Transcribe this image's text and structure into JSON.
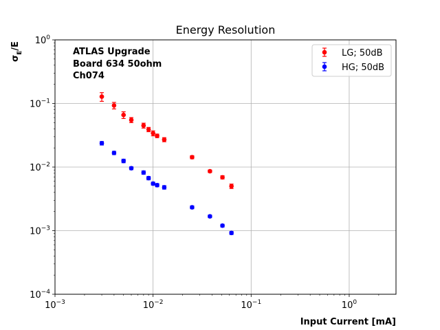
{
  "chart_data": {
    "type": "scatter",
    "title": "Energy Resolution",
    "xlabel": "Input Current [mA]",
    "ylabel_main": "σ",
    "ylabel_sub": "E",
    "ylabel_tail": "/E",
    "xscale": "log",
    "yscale": "log",
    "xlim": [
      0.001,
      3
    ],
    "ylim": [
      0.0001,
      1
    ],
    "x_ticks": [
      {
        "value": 0.001,
        "base": "10",
        "exp": "−3"
      },
      {
        "value": 0.01,
        "base": "10",
        "exp": "−2"
      },
      {
        "value": 0.1,
        "base": "10",
        "exp": "−1"
      },
      {
        "value": 1,
        "base": "10",
        "exp": "0"
      }
    ],
    "y_ticks": [
      {
        "value": 0.0001,
        "base": "10",
        "exp": "−4"
      },
      {
        "value": 0.001,
        "base": "10",
        "exp": "−3"
      },
      {
        "value": 0.01,
        "base": "10",
        "exp": "−2"
      },
      {
        "value": 0.1,
        "base": "10",
        "exp": "−1"
      },
      {
        "value": 1,
        "base": "10",
        "exp": "0"
      }
    ],
    "grid": true,
    "legend_position": "top-right",
    "annotation": [
      "ATLAS Upgrade",
      "Board 634 50ohm",
      "Ch074"
    ],
    "series": [
      {
        "name": "LG; 50dB",
        "color": "#ff0000",
        "x": [
          0.003,
          0.004,
          0.005,
          0.006,
          0.008,
          0.009,
          0.01,
          0.011,
          0.013,
          0.025,
          0.038,
          0.051,
          0.063
        ],
        "y": [
          0.128,
          0.093,
          0.066,
          0.055,
          0.045,
          0.039,
          0.034,
          0.031,
          0.027,
          0.0143,
          0.0086,
          0.0069,
          0.005
        ],
        "yerr": [
          0.02,
          0.011,
          0.008,
          0.005,
          0.004,
          0.003,
          0.003,
          0.002,
          0.002,
          0.0008,
          0.0004,
          0.0004,
          0.0004
        ]
      },
      {
        "name": "HG; 50dB",
        "color": "#0000ff",
        "x": [
          0.003,
          0.004,
          0.005,
          0.006,
          0.008,
          0.009,
          0.01,
          0.011,
          0.013,
          0.025,
          0.038,
          0.051,
          0.063
        ],
        "y": [
          0.0237,
          0.0167,
          0.0125,
          0.0096,
          0.0082,
          0.0067,
          0.0055,
          0.0052,
          0.0048,
          0.00233,
          0.00168,
          0.0012,
          0.00092
        ],
        "yerr": [
          0.0015,
          0.001,
          0.0008,
          0.0005,
          0.0005,
          0.0004,
          0.0003,
          0.0003,
          0.0003,
          0.00012,
          8e-05,
          6e-05,
          5e-05
        ]
      }
    ]
  }
}
